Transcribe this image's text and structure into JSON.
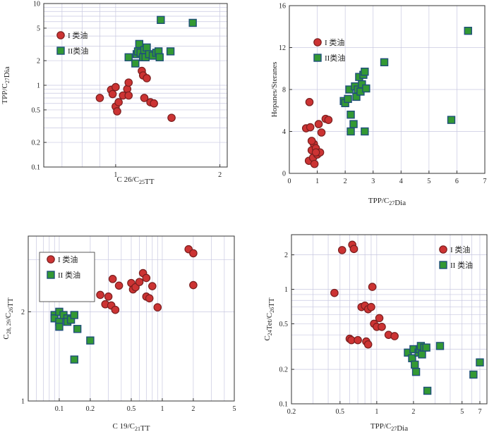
{
  "colors": {
    "type1_fill": "#cc3333",
    "type1_stroke": "#7a1f1f",
    "type2_fill": "#339933",
    "type2_stroke": "#1f4f7a",
    "grid": "#c8c8e0",
    "axis": "#333333"
  },
  "chart_data": [
    {
      "type": "scatter",
      "xlabel": "C 26/C25TT",
      "ylabel": "TPP/C27Dia",
      "xscale": "log",
      "yscale": "log",
      "xlim": [
        0.62,
        2.1
      ],
      "ylim": [
        0.1,
        10
      ],
      "xticks": [
        1,
        2
      ],
      "xtick_labels": [
        "1",
        "2"
      ],
      "yticks": [
        0.1,
        0.2,
        0.5,
        1,
        2,
        5,
        10
      ],
      "ytick_labels": [
        "0.1",
        "0.2",
        "0.5",
        "1",
        "2",
        "5",
        "10"
      ],
      "legend": {
        "position": "top-left",
        "entries": [
          "I 类油",
          "II类油"
        ]
      },
      "grid": true,
      "series": [
        {
          "name": "I 类油",
          "marker": "circle",
          "points": [
            [
              0.9,
              0.7
            ],
            [
              0.97,
              0.88
            ],
            [
              0.98,
              0.78
            ],
            [
              1.0,
              0.95
            ],
            [
              1.0,
              0.55
            ],
            [
              1.01,
              0.48
            ],
            [
              1.02,
              0.62
            ],
            [
              1.05,
              0.75
            ],
            [
              1.08,
              0.9
            ],
            [
              1.09,
              0.75
            ],
            [
              1.09,
              1.08
            ],
            [
              1.19,
              1.5
            ],
            [
              1.2,
              1.32
            ],
            [
              1.21,
              0.7
            ],
            [
              1.23,
              1.22
            ],
            [
              1.26,
              0.62
            ],
            [
              1.29,
              0.6
            ],
            [
              1.45,
              0.4
            ]
          ]
        },
        {
          "name": "II类油",
          "marker": "square",
          "points": [
            [
              1.09,
              2.2
            ],
            [
              1.14,
              1.85
            ],
            [
              1.15,
              2.4
            ],
            [
              1.16,
              2.6
            ],
            [
              1.17,
              3.2
            ],
            [
              1.18,
              2.5
            ],
            [
              1.2,
              2.2
            ],
            [
              1.21,
              2.7
            ],
            [
              1.22,
              2.2
            ],
            [
              1.23,
              2.9
            ],
            [
              1.25,
              2.4
            ],
            [
              1.28,
              2.3
            ],
            [
              1.31,
              2.5
            ],
            [
              1.33,
              2.6
            ],
            [
              1.35,
              6.3
            ],
            [
              1.34,
              2.2
            ],
            [
              1.44,
              2.6
            ],
            [
              1.67,
              5.8
            ]
          ]
        }
      ]
    },
    {
      "type": "scatter",
      "xlabel": "TPP/C27Dia",
      "ylabel": "Hopanes/Steranes",
      "xlim": [
        0,
        7
      ],
      "ylim": [
        0,
        16
      ],
      "xticks": [
        0,
        1,
        2,
        3,
        4,
        5,
        6,
        7
      ],
      "xtick_labels": [
        "0",
        "1",
        "2",
        "3",
        "4",
        "5",
        "6",
        "7"
      ],
      "yticks": [
        0,
        4,
        8,
        12,
        16
      ],
      "ytick_labels": [
        "0",
        "4",
        "8",
        "12",
        "16"
      ],
      "legend": {
        "position": "top-left",
        "entries": [
          "I 类油",
          "II类油"
        ]
      },
      "grid": true,
      "series": [
        {
          "name": "I 类油",
          "marker": "circle",
          "points": [
            [
              0.6,
              4.3
            ],
            [
              0.7,
              1.2
            ],
            [
              0.72,
              6.8
            ],
            [
              0.75,
              4.4
            ],
            [
              0.8,
              2.2
            ],
            [
              0.85,
              1.5
            ],
            [
              0.88,
              2.8
            ],
            [
              0.9,
              0.9
            ],
            [
              0.95,
              2.4
            ],
            [
              1.0,
              1.8
            ],
            [
              1.05,
              4.7
            ],
            [
              1.1,
              2.0
            ],
            [
              1.15,
              3.9
            ],
            [
              1.3,
              5.2
            ],
            [
              1.4,
              5.1
            ],
            [
              0.8,
              3.1
            ],
            [
              0.95,
              2.0
            ]
          ]
        },
        {
          "name": "II类油",
          "marker": "square",
          "points": [
            [
              1.95,
              6.9
            ],
            [
              2.0,
              6.7
            ],
            [
              2.1,
              7.1
            ],
            [
              2.15,
              8.0
            ],
            [
              2.2,
              5.6
            ],
            [
              2.2,
              4.0
            ],
            [
              2.3,
              4.7
            ],
            [
              2.35,
              8.3
            ],
            [
              2.4,
              7.3
            ],
            [
              2.45,
              8.0
            ],
            [
              2.5,
              9.2
            ],
            [
              2.55,
              7.8
            ],
            [
              2.6,
              8.5
            ],
            [
              2.65,
              9.4
            ],
            [
              2.7,
              9.7
            ],
            [
              2.75,
              8.1
            ],
            [
              2.7,
              4.0
            ],
            [
              3.4,
              10.6
            ],
            [
              5.8,
              5.1
            ],
            [
              6.4,
              13.6
            ]
          ]
        }
      ]
    },
    {
      "type": "scatter",
      "xlabel": "C 19/C21TT",
      "ylabel": "C28, 29/C26TT",
      "xscale": "log",
      "yscale": "log",
      "xlim": [
        0.05,
        5
      ],
      "ylim": [
        1,
        3.6
      ],
      "xticks": [
        0.1,
        0.2,
        0.5,
        1,
        2,
        5
      ],
      "xtick_labels": [
        "0.1",
        "0.2",
        "0.5",
        "1",
        "2",
        "5"
      ],
      "yticks": [
        1,
        2
      ],
      "ytick_labels": [
        "1",
        "2"
      ],
      "legend": {
        "position": "top-left",
        "entries": [
          "I 类油",
          "II 类油"
        ]
      },
      "grid": true,
      "series": [
        {
          "name": "I 类油",
          "marker": "circle",
          "points": [
            [
              0.25,
              2.28
            ],
            [
              0.28,
              2.12
            ],
            [
              0.3,
              2.25
            ],
            [
              0.32,
              2.1
            ],
            [
              0.33,
              2.58
            ],
            [
              0.35,
              2.03
            ],
            [
              0.38,
              2.45
            ],
            [
              0.5,
              2.5
            ],
            [
              0.52,
              2.38
            ],
            [
              0.55,
              2.42
            ],
            [
              0.6,
              2.52
            ],
            [
              0.65,
              2.7
            ],
            [
              0.7,
              2.6
            ],
            [
              0.7,
              2.25
            ],
            [
              0.75,
              2.22
            ],
            [
              0.8,
              2.44
            ],
            [
              0.9,
              2.07
            ],
            [
              1.8,
              3.25
            ],
            [
              2.0,
              3.15
            ],
            [
              2.0,
              2.46
            ]
          ]
        },
        {
          "name": "II 类油",
          "marker": "square",
          "points": [
            [
              0.09,
              1.95
            ],
            [
              0.09,
              1.9
            ],
            [
              0.1,
              2.0
            ],
            [
              0.1,
              1.85
            ],
            [
              0.1,
              1.78
            ],
            [
              0.11,
              1.95
            ],
            [
              0.12,
              1.9
            ],
            [
              0.12,
              1.85
            ],
            [
              0.13,
              1.88
            ],
            [
              0.14,
              1.95
            ],
            [
              0.15,
              1.75
            ],
            [
              0.2,
              1.6
            ],
            [
              0.14,
              1.38
            ]
          ]
        }
      ]
    },
    {
      "type": "scatter",
      "xlabel": "TPP/C27Dia",
      "ylabel": "C24Tet/C26TT",
      "xscale": "log",
      "yscale": "log",
      "xlim": [
        0.2,
        8
      ],
      "ylim": [
        0.1,
        3
      ],
      "xticks": [
        0.2,
        0.5,
        1,
        2,
        5,
        7
      ],
      "xtick_labels": [
        "0.2",
        "0.5",
        "1",
        "2",
        "5",
        "7"
      ],
      "yticks": [
        0.1,
        0.2,
        0.5,
        1,
        2
      ],
      "ytick_labels": [
        "0.1",
        "0.2",
        "0.5",
        "1",
        "2"
      ],
      "legend": {
        "position": "top-right",
        "entries": [
          "I 类油",
          "II 类油"
        ]
      },
      "grid": true,
      "series": [
        {
          "name": "I 类油",
          "marker": "circle",
          "points": [
            [
              0.45,
              0.93
            ],
            [
              0.52,
              2.2
            ],
            [
              0.6,
              0.37
            ],
            [
              0.62,
              0.36
            ],
            [
              0.63,
              2.45
            ],
            [
              0.65,
              2.25
            ],
            [
              0.7,
              0.36
            ],
            [
              0.75,
              0.7
            ],
            [
              0.8,
              0.72
            ],
            [
              0.82,
              0.35
            ],
            [
              0.85,
              0.33
            ],
            [
              0.85,
              0.67
            ],
            [
              0.9,
              0.7
            ],
            [
              0.92,
              1.05
            ],
            [
              0.95,
              0.5
            ],
            [
              1.0,
              0.47
            ],
            [
              1.05,
              0.56
            ],
            [
              1.1,
              0.47
            ],
            [
              1.25,
              0.4
            ],
            [
              1.4,
              0.39
            ]
          ]
        },
        {
          "name": "II 类油",
          "marker": "square",
          "points": [
            [
              1.8,
              0.28
            ],
            [
              1.95,
              0.25
            ],
            [
              2.0,
              0.3
            ],
            [
              2.05,
              0.22
            ],
            [
              2.1,
              0.19
            ],
            [
              2.2,
              0.28
            ],
            [
              2.25,
              0.3
            ],
            [
              2.3,
              0.32
            ],
            [
              2.35,
              0.27
            ],
            [
              2.45,
              0.31
            ],
            [
              2.55,
              0.31
            ],
            [
              2.6,
              0.13
            ],
            [
              3.3,
              0.32
            ],
            [
              6.2,
              0.18
            ],
            [
              7.0,
              0.23
            ]
          ]
        }
      ]
    }
  ]
}
